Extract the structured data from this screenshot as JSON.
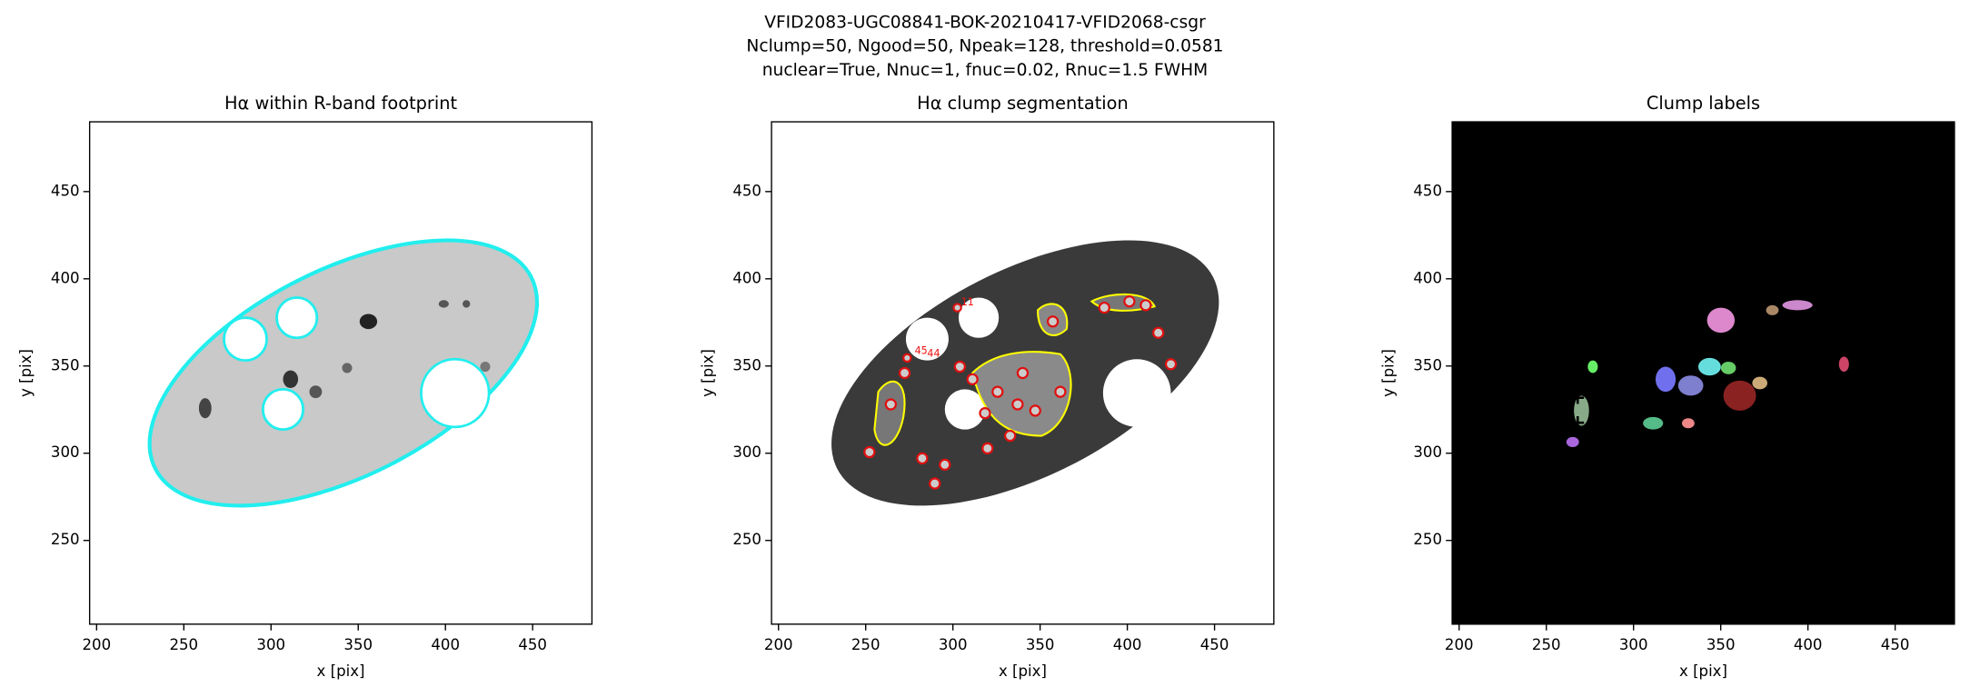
{
  "suptitle": [
    "VFID2083-UGC08841-BOK-20210417-VFID2068-csgr",
    "Nclump=50, Ngood=50, Npeak=128, threshold=0.0581",
    "nuclear=True, Nnuc=1, fnuc=0.02, Rnuc=1.5 FWHM"
  ],
  "chart_data": [
    {
      "type": "image",
      "title": "Hα within R-band footprint",
      "xlabel": "x [pix]",
      "ylabel": "y [pix]",
      "xlim": [
        196,
        484
      ],
      "ylim": [
        202,
        490
      ],
      "xticks": [
        200,
        250,
        300,
        350,
        400,
        450
      ],
      "yticks": [
        250,
        300,
        350,
        400,
        450
      ]
    },
    {
      "type": "image",
      "title": "Hα clump segmentation",
      "xlabel": "x [pix]",
      "ylabel": "y [pix]",
      "xlim": [
        196,
        484
      ],
      "ylim": [
        202,
        490
      ],
      "xticks": [
        200,
        250,
        300,
        350,
        400,
        450
      ],
      "yticks": [
        250,
        300,
        350,
        400,
        450
      ],
      "clump_labels": [
        "11",
        "45",
        "44"
      ]
    },
    {
      "type": "image",
      "title": "Clump labels",
      "xlabel": "x [pix]",
      "ylabel": "y [pix]",
      "xlim": [
        196,
        484
      ],
      "ylim": [
        202,
        490
      ],
      "xticks": [
        200,
        250,
        300,
        350,
        400,
        450
      ],
      "yticks": [
        250,
        300,
        350,
        400,
        450
      ]
    }
  ]
}
